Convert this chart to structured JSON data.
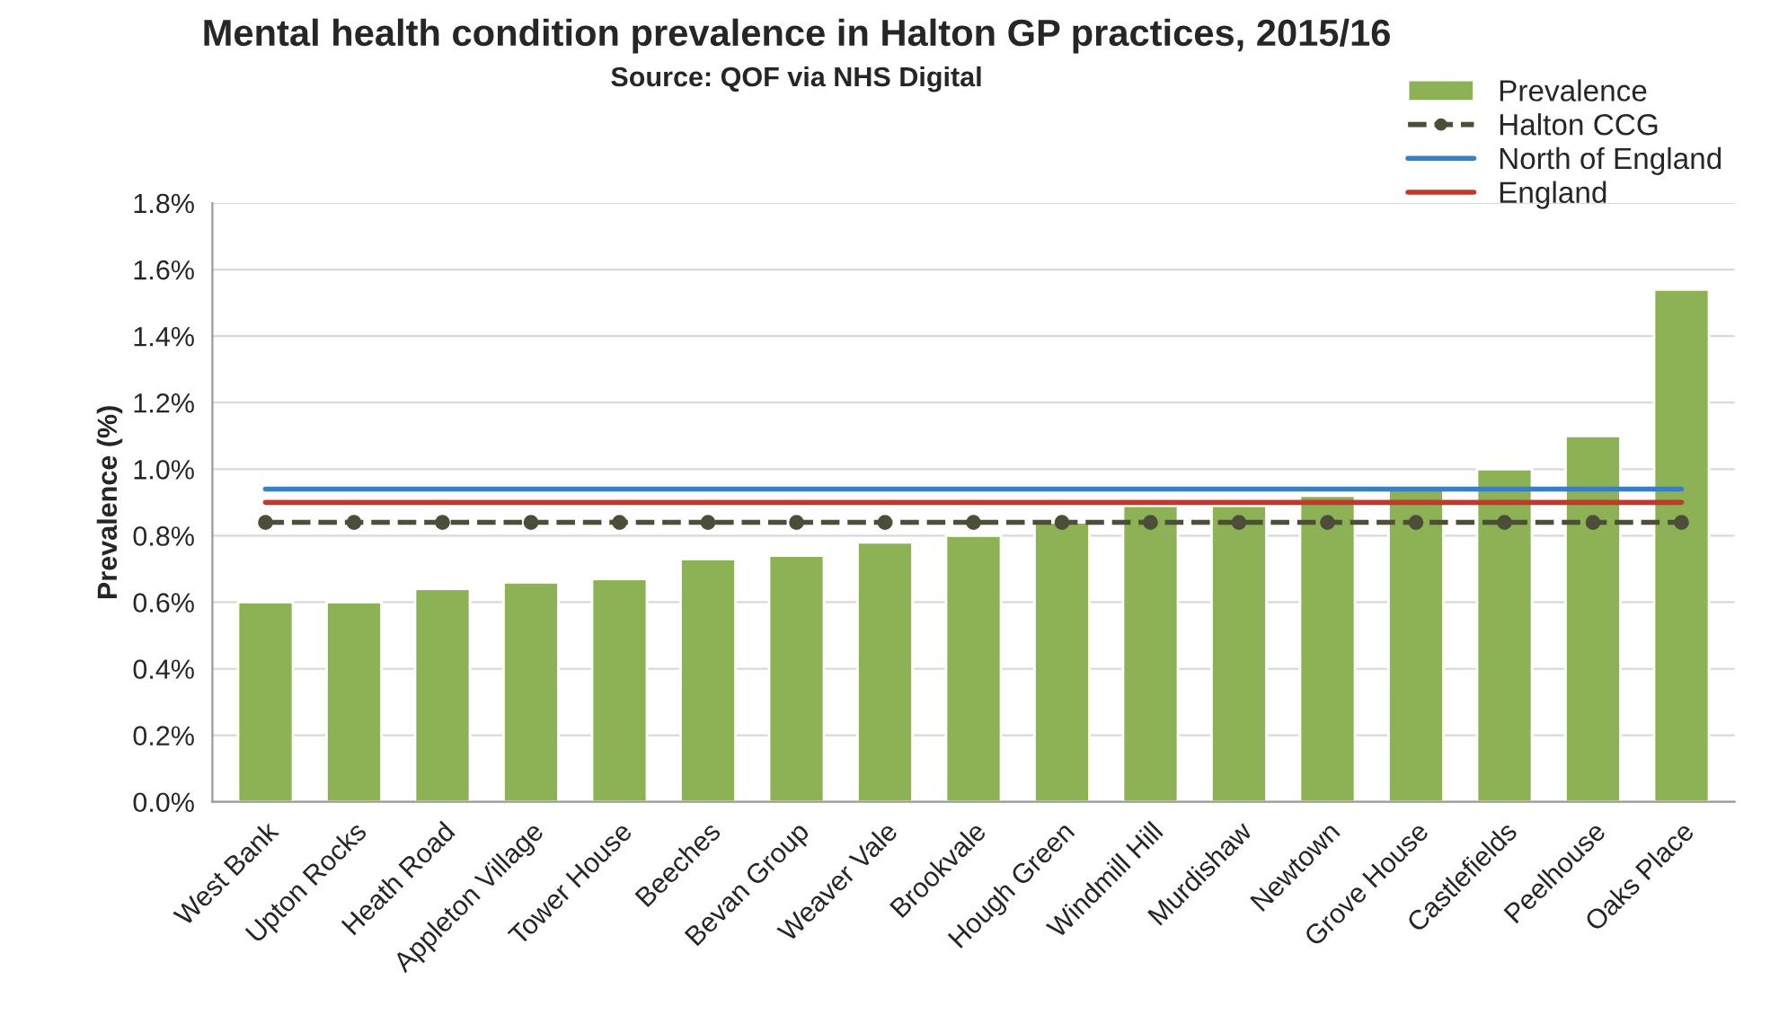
{
  "chart_data": {
    "type": "bar",
    "title": "Mental health condition prevalence in Halton GP practices, 2015/16",
    "subtitle": "Source: QOF via NHS Digital",
    "ylabel": "Prevalence (%)",
    "categories": [
      "West Bank",
      "Upton Rocks",
      "Heath Road",
      "Appleton Village",
      "Tower House",
      "Beeches",
      "Bevan Group",
      "Weaver Vale",
      "Brookvale",
      "Hough Green",
      "Windmill Hill",
      "Murdishaw",
      "Newtown",
      "Grove House",
      "Castlefields",
      "Peelhouse",
      "Oaks Place"
    ],
    "series": [
      {
        "name": "Prevalence",
        "color": "#8db255",
        "values": [
          0.6,
          0.6,
          0.64,
          0.66,
          0.67,
          0.73,
          0.74,
          0.78,
          0.8,
          0.84,
          0.89,
          0.89,
          0.92,
          0.94,
          1.0,
          1.1,
          1.54
        ]
      },
      {
        "name": "Halton CCG",
        "type": "line",
        "color": "#4d4d3a",
        "line_style": "dashed",
        "marker": "circle",
        "values": [
          0.84,
          0.84,
          0.84,
          0.84,
          0.84,
          0.84,
          0.84,
          0.84,
          0.84,
          0.84,
          0.84,
          0.84,
          0.84,
          0.84,
          0.84,
          0.84,
          0.84
        ]
      },
      {
        "name": "North of England",
        "type": "line",
        "color": "#3a7fc0",
        "line_style": "solid",
        "marker": "none",
        "values": [
          0.94,
          0.94,
          0.94,
          0.94,
          0.94,
          0.94,
          0.94,
          0.94,
          0.94,
          0.94,
          0.94,
          0.94,
          0.94,
          0.94,
          0.94,
          0.94,
          0.94
        ]
      },
      {
        "name": "England",
        "type": "line",
        "color": "#c0392b",
        "line_style": "solid",
        "marker": "none",
        "values": [
          0.9,
          0.9,
          0.9,
          0.9,
          0.9,
          0.9,
          0.9,
          0.9,
          0.9,
          0.9,
          0.9,
          0.9,
          0.9,
          0.9,
          0.9,
          0.9,
          0.9
        ]
      }
    ],
    "ylim": [
      0,
      1.8
    ],
    "yticks": [
      {
        "value": 0,
        "label": "0.0%"
      },
      {
        "value": 0.2,
        "label": "0.2%"
      },
      {
        "value": 0.4,
        "label": "0.4%"
      },
      {
        "value": 0.6,
        "label": "0.6%"
      },
      {
        "value": 0.8,
        "label": "0.8%"
      },
      {
        "value": 1.0,
        "label": "1.0%"
      },
      {
        "value": 1.2,
        "label": "1.2%"
      },
      {
        "value": 1.4,
        "label": "1.4%"
      },
      {
        "value": 1.6,
        "label": "1.6%"
      },
      {
        "value": 1.8,
        "label": "1.8%"
      }
    ],
    "grid": "y",
    "legend": "top right"
  }
}
